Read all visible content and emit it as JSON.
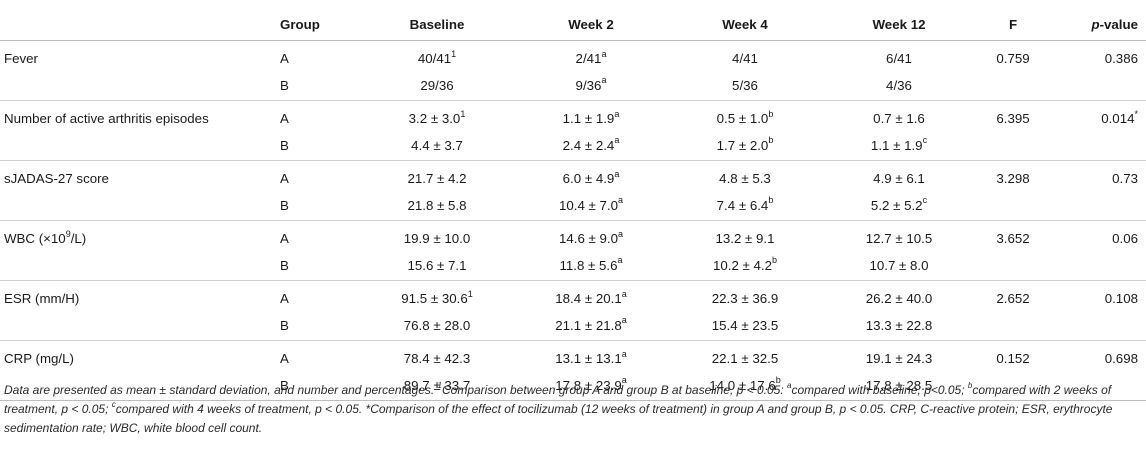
{
  "header": {
    "group": "Group",
    "baseline": "Baseline",
    "week2": "Week 2",
    "week4": "Week 4",
    "week12": "Week 12",
    "f": "F",
    "p_prefix": "p",
    "p_suffix": "-value"
  },
  "rows": [
    {
      "label": "Fever",
      "f": "0.759",
      "p": "0.386",
      "p_sup": "",
      "a": {
        "group": "A",
        "baseline": "40/41",
        "baseline_sup": "1",
        "week2": "2/41",
        "week2_sup": "a",
        "week4": "4/41",
        "week4_sup": "",
        "week12": "6/41",
        "week12_sup": ""
      },
      "b": {
        "group": "B",
        "baseline": "29/36",
        "baseline_sup": "",
        "week2": "9/36",
        "week2_sup": "a",
        "week4": "5/36",
        "week4_sup": "",
        "week12": "4/36",
        "week12_sup": ""
      }
    },
    {
      "label": "Number of active arthritis episodes",
      "f": "6.395",
      "p": "0.014",
      "p_sup": "*",
      "a": {
        "group": "A",
        "baseline": "3.2 ± 3.0",
        "baseline_sup": "1",
        "week2": "1.1 ± 1.9",
        "week2_sup": "a",
        "week4": "0.5 ± 1.0",
        "week4_sup": "b",
        "week12": "0.7 ± 1.6",
        "week12_sup": ""
      },
      "b": {
        "group": "B",
        "baseline": "4.4 ± 3.7",
        "baseline_sup": "",
        "week2": "2.4 ± 2.4",
        "week2_sup": "a",
        "week4": "1.7 ± 2.0",
        "week4_sup": "b",
        "week12": "1.1 ± 1.9",
        "week12_sup": "c"
      }
    },
    {
      "label": "sJADAS-27 score",
      "f": "3.298",
      "p": "0.73",
      "p_sup": "",
      "a": {
        "group": "A",
        "baseline": "21.7 ± 4.2",
        "baseline_sup": "",
        "week2": "6.0 ± 4.9",
        "week2_sup": "a",
        "week4": "4.8 ± 5.3",
        "week4_sup": "",
        "week12": "4.9 ± 6.1",
        "week12_sup": ""
      },
      "b": {
        "group": "B",
        "baseline": "21.8 ± 5.8",
        "baseline_sup": "",
        "week2": "10.4 ± 7.0",
        "week2_sup": "a",
        "week4": "7.4 ± 6.4",
        "week4_sup": "b",
        "week12": "5.2 ± 5.2",
        "week12_sup": "c"
      }
    },
    {
      "label_pre": "WBC (×10",
      "label_sup": "9",
      "label_post": "/L)",
      "f": "3.652",
      "p": "0.06",
      "p_sup": "",
      "a": {
        "group": "A",
        "baseline": "19.9 ± 10.0",
        "baseline_sup": "",
        "week2": "14.6 ± 9.0",
        "week2_sup": "a",
        "week4": "13.2 ± 9.1",
        "week4_sup": "",
        "week12": "12.7 ± 10.5",
        "week12_sup": ""
      },
      "b": {
        "group": "B",
        "baseline": "15.6 ± 7.1",
        "baseline_sup": "",
        "week2": "11.8 ± 5.6",
        "week2_sup": "a",
        "week4": "10.2 ± 4.2",
        "week4_sup": "b",
        "week12": "10.7 ± 8.0",
        "week12_sup": ""
      }
    },
    {
      "label": "ESR (mm/H)",
      "f": "2.652",
      "p": "0.108",
      "p_sup": "",
      "a": {
        "group": "A",
        "baseline": "91.5 ± 30.6",
        "baseline_sup": "1",
        "week2": "18.4 ± 20.1",
        "week2_sup": "a",
        "week4": "22.3 ± 36.9",
        "week4_sup": "",
        "week12": "26.2 ± 40.0",
        "week12_sup": ""
      },
      "b": {
        "group": "B",
        "baseline": "76.8 ± 28.0",
        "baseline_sup": "",
        "week2": "21.1 ± 21.8",
        "week2_sup": "a",
        "week4": "15.4 ± 23.5",
        "week4_sup": "",
        "week12": "13.3 ± 22.8",
        "week12_sup": ""
      }
    },
    {
      "label": "CRP (mg/L)",
      "f": "0.152",
      "p": "0.698",
      "p_sup": "",
      "a": {
        "group": "A",
        "baseline": "78.4 ± 42.3",
        "baseline_sup": "",
        "week2": "13.1 ± 13.1",
        "week2_sup": "a",
        "week4": "22.1 ± 32.5",
        "week4_sup": "",
        "week12": "19.1 ± 24.3",
        "week12_sup": ""
      },
      "b": {
        "group": "B",
        "baseline": "89.7 ± 33.7",
        "baseline_sup": "",
        "week2": "17.8 ± 23.9",
        "week2_sup": "a",
        "week4": "14.0 ± 17.6",
        "week4_sup": "b",
        "week12": "17.8 ± 28.5",
        "week12_sup": ""
      }
    }
  ],
  "footnote": {
    "t1": "Data are presented as mean ± standard deviation, and number and percentages. ",
    "s1": "1",
    "t2": "Comparison between group A and group B at baseline, p < 0.05: ",
    "s2": "a",
    "t3": "compared with baseline, p<0.05; ",
    "s3": "b",
    "t4": "compared with 2 weeks of treatment, p < 0.05; ",
    "s4": "c",
    "t5": "compared with 4 weeks of treatment, p < 0.05. *Comparison of the effect of tocilizumab (12 weeks of treatment) in group A and group B, p < 0.05. CRP, C-reactive protein; ESR, erythrocyte sedimentation rate; WBC, white blood cell count."
  }
}
